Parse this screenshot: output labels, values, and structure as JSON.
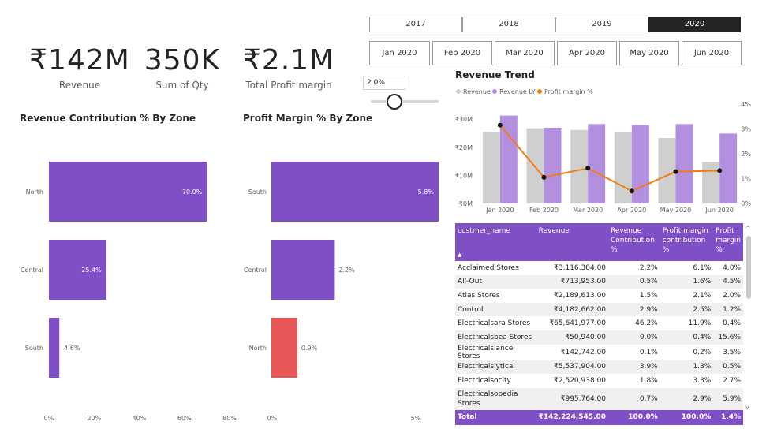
{
  "kpis": [
    {
      "value": "₹142M",
      "label": "Revenue"
    },
    {
      "value": "350K",
      "label": "Sum of Qty"
    },
    {
      "value": "₹2.1M",
      "label": "Total Profit margin"
    }
  ],
  "years": [
    "2017",
    "2018",
    "2019",
    "2020"
  ],
  "selected_year": "2020",
  "months": [
    "Jan 2020",
    "Feb 2020",
    "Mar 2020",
    "Apr 2020",
    "May 2020",
    "Jun 2020"
  ],
  "slider": {
    "value": "2.0%"
  },
  "colors": {
    "accent": "#7f4fc6",
    "red": "#e85757",
    "gray": "#cfcfcf",
    "lavender": "#b38fe0",
    "orange": "#f07e14"
  },
  "chart_data": [
    {
      "type": "bar",
      "orientation": "horizontal",
      "title": "Revenue Contribution % By Zone",
      "categories": [
        "North",
        "Central",
        "South"
      ],
      "values": [
        70.0,
        25.4,
        4.6
      ],
      "data_labels": [
        "70.0%",
        "25.4%",
        "4.6%"
      ],
      "x_ticks": [
        "0%",
        "20%",
        "40%",
        "60%",
        "80%"
      ],
      "xlim": [
        0,
        80
      ]
    },
    {
      "type": "bar",
      "orientation": "horizontal",
      "title": "Profit Margin % By Zone",
      "categories": [
        "South",
        "Central",
        "North"
      ],
      "values": [
        5.8,
        2.2,
        0.9
      ],
      "data_labels": [
        "5.8%",
        "2.2%",
        "0.9%"
      ],
      "x_ticks": [
        "0%",
        "5%"
      ],
      "xlim": [
        0,
        5.8
      ]
    },
    {
      "type": "bar",
      "title": "Revenue Trend",
      "legend": [
        "Revenue",
        "Revenue LY",
        "Profit margin %"
      ],
      "categories": [
        "Jan 2020",
        "Feb 2020",
        "Mar 2020",
        "Apr 2020",
        "May 2020",
        "Jun 2020"
      ],
      "series": [
        {
          "name": "Revenue",
          "values": [
            25.5,
            26.8,
            26.2,
            25.3,
            23.3,
            14.8
          ]
        },
        {
          "name": "Revenue LY",
          "values": [
            31.3,
            27.0,
            28.3,
            27.9,
            28.3,
            24.9
          ]
        },
        {
          "name": "Profit margin %",
          "axis": "right",
          "values": [
            3.15,
            1.05,
            1.42,
            0.5,
            1.28,
            1.32
          ]
        }
      ],
      "y_ticks": [
        "₹0M",
        "₹10M",
        "₹20M",
        "₹30M"
      ],
      "ylim": [
        0,
        34
      ],
      "y2_ticks": [
        "0%",
        "1%",
        "2%",
        "3%",
        "4%"
      ],
      "y2lim": [
        0,
        4
      ]
    }
  ],
  "table": {
    "columns": [
      "custmer_name",
      "Revenue",
      "Revenue Contribution %",
      "Profit margin contribution %",
      "Profit margin %"
    ],
    "rows": [
      [
        "Acclaimed Stores",
        "₹3,116,384.00",
        "2.2%",
        "6.1%",
        "4.0%"
      ],
      [
        "All-Out",
        "₹713,953.00",
        "0.5%",
        "1.6%",
        "4.5%"
      ],
      [
        "Atlas Stores",
        "₹2,189,613.00",
        "1.5%",
        "2.1%",
        "2.0%"
      ],
      [
        "Control",
        "₹4,182,662.00",
        "2.9%",
        "2.5%",
        "1.2%"
      ],
      [
        "Electricalsara Stores",
        "₹65,641,977.00",
        "46.2%",
        "11.9%",
        "0.4%"
      ],
      [
        "Electricalsbea Stores",
        "₹50,940.00",
        "0.0%",
        "0.4%",
        "15.6%"
      ],
      [
        "Electricalslance Stores",
        "₹142,742.00",
        "0.1%",
        "0.2%",
        "3.5%"
      ],
      [
        "Electricalslytical",
        "₹5,537,904.00",
        "3.9%",
        "1.3%",
        "0.5%"
      ],
      [
        "Electricalsocity",
        "₹2,520,938.00",
        "1.8%",
        "3.3%",
        "2.7%"
      ],
      [
        "Electricalsopedia Stores",
        "₹995,764.00",
        "0.7%",
        "2.9%",
        "5.9%"
      ]
    ],
    "total": [
      "Total",
      "₹142,224,545.00",
      "100.0%",
      "100.0%",
      "1.4%"
    ]
  }
}
